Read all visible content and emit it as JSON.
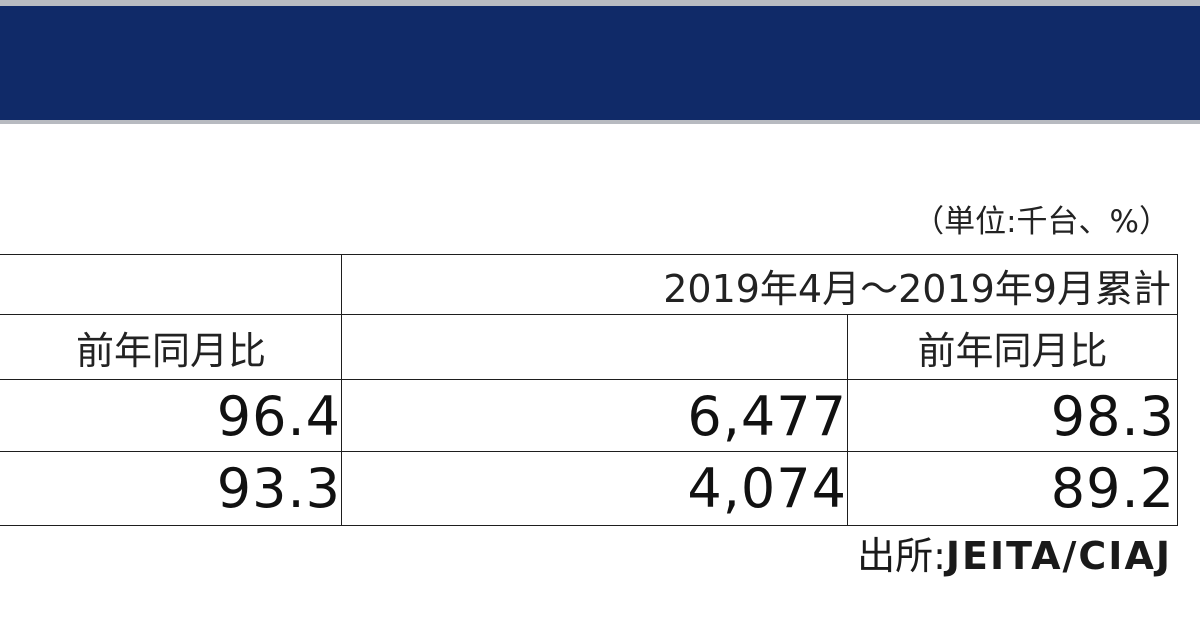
{
  "unit_note": "（単位:千台、%）",
  "table": {
    "period_header": "2019年4月～2019年9月累計",
    "yoy_header_left": "前年同月比",
    "yoy_header_right": "前年同月比",
    "rows": [
      {
        "yoy_month": "96.4",
        "cumulative": "6,477",
        "cumulative_yoy": "98.3"
      },
      {
        "yoy_month": "93.3",
        "cumulative": "4,074",
        "cumulative_yoy": "89.2"
      }
    ]
  },
  "source": {
    "label": "出所:",
    "org": "JEITA/CIAJ"
  },
  "colors": {
    "header_band": "#102a68",
    "border": "#1e1e1e"
  }
}
